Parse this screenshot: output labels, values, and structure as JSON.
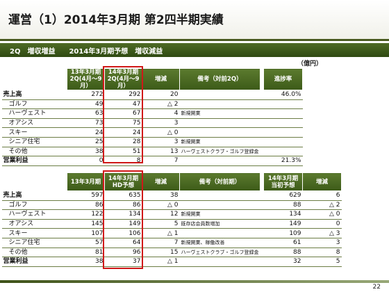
{
  "title": "運営（1）2014年3月期 第2四半期実績",
  "subtitle": "2Q　増収増益　　2014年3月期予想　増収減益",
  "unit": "（億円）",
  "page_number": "22",
  "table1": {
    "headers": {
      "col1": [
        "13年3月期",
        "2Q(4月～9月）"
      ],
      "col2": [
        "14年3月期",
        "2Q(4月～9月）"
      ],
      "col3": "増減",
      "col4": "備考（対前2Q）",
      "col5": "進捗率"
    },
    "rows": [
      {
        "label": "売上高",
        "a": "272",
        "b": "292",
        "diff": "20",
        "note": "",
        "progress": "46.0%"
      },
      {
        "label": "ゴルフ",
        "a": "49",
        "b": "47",
        "diff": "△ 2",
        "note": "",
        "progress": ""
      },
      {
        "label": "ハーヴェスト",
        "a": "63",
        "b": "67",
        "diff": "4",
        "note": "新規開業",
        "progress": ""
      },
      {
        "label": "オアシス",
        "a": "73",
        "b": "75",
        "diff": "3",
        "note": "",
        "progress": ""
      },
      {
        "label": "スキー",
        "a": "24",
        "b": "24",
        "diff": "△ 0",
        "note": "",
        "progress": ""
      },
      {
        "label": "シニア住宅",
        "a": "25",
        "b": "28",
        "diff": "3",
        "note": "新規開業",
        "progress": ""
      },
      {
        "label": "その他",
        "a": "38",
        "b": "51",
        "diff": "13",
        "note": "ハーヴェストクラブ・ゴルフ登録金",
        "progress": ""
      },
      {
        "label": "営業利益",
        "a": "0",
        "b": "8",
        "diff": "7",
        "note": "",
        "progress": "21.3%"
      }
    ]
  },
  "table2": {
    "headers": {
      "col1": "13年3月期",
      "col2": [
        "14年3月期",
        "HD予想"
      ],
      "col3": "増減",
      "col4": "備考（対前期）",
      "col5": [
        "14年3月期",
        "当初予想"
      ],
      "col6": "増減"
    },
    "rows": [
      {
        "label": "売上高",
        "a": "597",
        "b": "635",
        "diff": "38",
        "note": "",
        "initial": "629",
        "diff2": "6"
      },
      {
        "label": "ゴルフ",
        "a": "86",
        "b": "86",
        "diff": "△ 0",
        "note": "",
        "initial": "88",
        "diff2": "△ 2"
      },
      {
        "label": "ハーヴェスト",
        "a": "122",
        "b": "134",
        "diff": "12",
        "note": "新規開業",
        "initial": "134",
        "diff2": "△ 0"
      },
      {
        "label": "オアシス",
        "a": "145",
        "b": "149",
        "diff": "5",
        "note": "既存店会員数増加",
        "initial": "149",
        "diff2": "0"
      },
      {
        "label": "スキー",
        "a": "107",
        "b": "106",
        "diff": "△ 1",
        "note": "",
        "initial": "109",
        "diff2": "△ 3"
      },
      {
        "label": "シニア住宅",
        "a": "57",
        "b": "64",
        "diff": "7",
        "note": "新規開業、稼働改善",
        "initial": "61",
        "diff2": "3"
      },
      {
        "label": "その他",
        "a": "81",
        "b": "96",
        "diff": "15",
        "note": "ハーヴェストクラブ・ゴルフ登録金",
        "initial": "88",
        "diff2": "8"
      },
      {
        "label": "営業利益",
        "a": "38",
        "b": "37",
        "diff": "△ 1",
        "note": "",
        "initial": "32",
        "diff2": "5"
      }
    ]
  }
}
